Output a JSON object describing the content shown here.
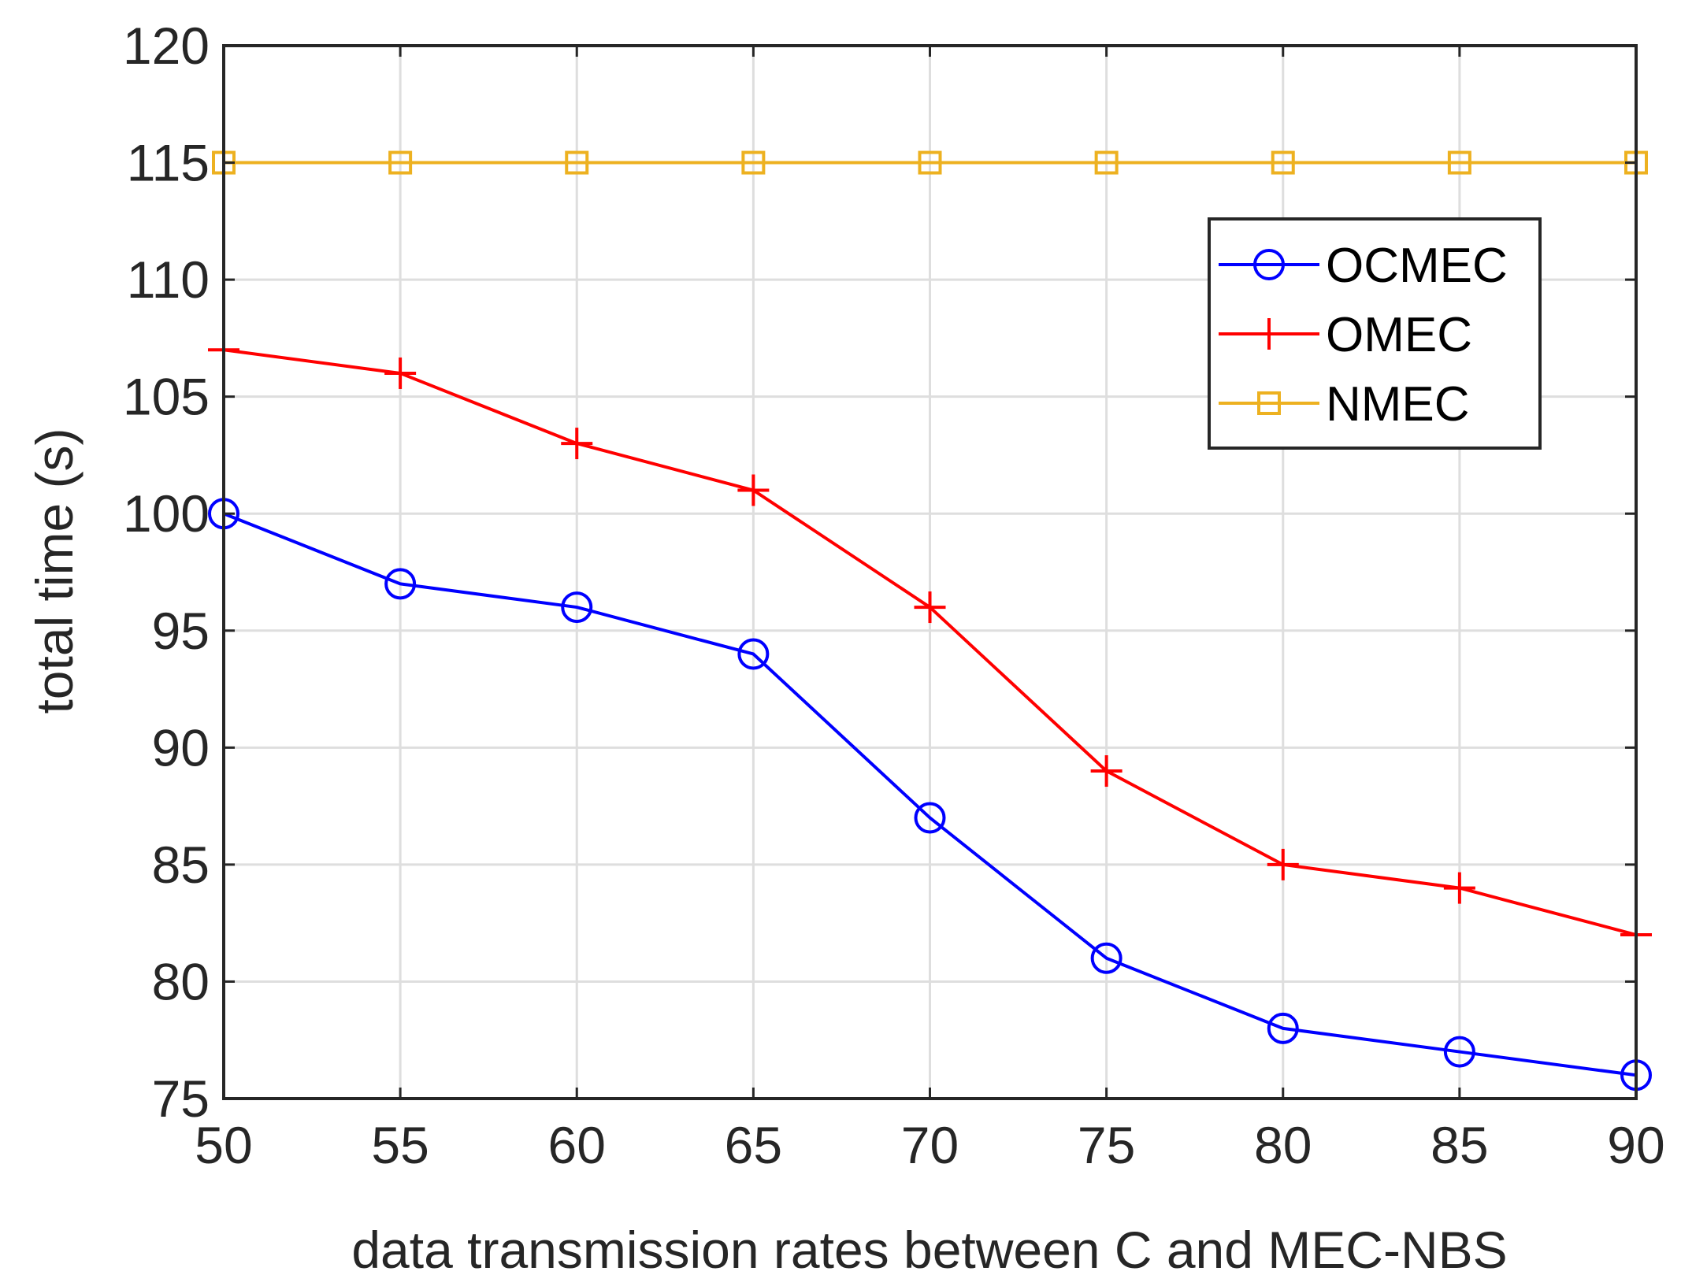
{
  "chart_data": {
    "type": "line",
    "title": "",
    "xlabel": "data transmission rates between C and MEC-NBS",
    "ylabel": "total time (s)",
    "x": [
      50,
      55,
      60,
      65,
      70,
      75,
      80,
      85,
      90
    ],
    "xlim": [
      50,
      90
    ],
    "ylim": [
      75,
      120
    ],
    "xticks": [
      50,
      55,
      60,
      65,
      70,
      75,
      80,
      85,
      90
    ],
    "yticks": [
      75,
      80,
      85,
      90,
      95,
      100,
      105,
      110,
      115,
      120
    ],
    "grid": true,
    "legend_position": "top-right",
    "series": [
      {
        "name": "OCMEC",
        "color": "#0000ff",
        "marker": "circle",
        "values": [
          100,
          97,
          96,
          94,
          87,
          81,
          78,
          77,
          76
        ]
      },
      {
        "name": "OMEC",
        "color": "#ff0000",
        "marker": "plus",
        "values": [
          107,
          106,
          103,
          101,
          96,
          89,
          85,
          84,
          82
        ]
      },
      {
        "name": "NMEC",
        "color": "#edb120",
        "marker": "square",
        "values": [
          115,
          115,
          115,
          115,
          115,
          115,
          115,
          115,
          115
        ]
      }
    ]
  }
}
